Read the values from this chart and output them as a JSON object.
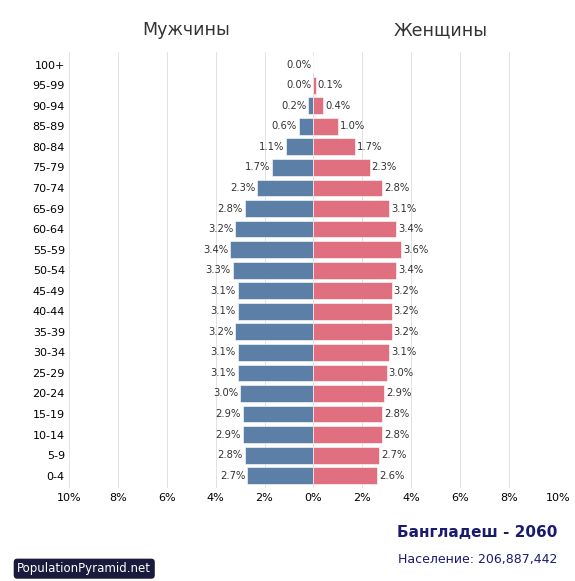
{
  "age_groups": [
    "0-4",
    "5-9",
    "10-14",
    "15-19",
    "20-24",
    "25-29",
    "30-34",
    "35-39",
    "40-44",
    "45-49",
    "50-54",
    "55-59",
    "60-64",
    "65-69",
    "70-74",
    "75-79",
    "80-84",
    "85-89",
    "90-94",
    "95-99",
    "100+"
  ],
  "male": [
    2.7,
    2.8,
    2.9,
    2.9,
    3.0,
    3.1,
    3.1,
    3.2,
    3.1,
    3.1,
    3.3,
    3.4,
    3.2,
    2.8,
    2.3,
    1.7,
    1.1,
    0.6,
    0.2,
    0.0,
    0.0
  ],
  "female": [
    2.6,
    2.7,
    2.8,
    2.8,
    2.9,
    3.0,
    3.1,
    3.2,
    3.2,
    3.2,
    3.4,
    3.6,
    3.4,
    3.1,
    2.8,
    2.3,
    1.7,
    1.0,
    0.4,
    0.1,
    0.0
  ],
  "male_color": "#5b7fa6",
  "female_color": "#e07080",
  "bg_color": "#ffffff",
  "title_country": "Бангладеш - 2060",
  "title_population": "Население: 206,887,442",
  "label_male": "Мужчины",
  "label_female": "Женщины",
  "watermark": "PopulationPyramid.net",
  "xlim": 10.0
}
